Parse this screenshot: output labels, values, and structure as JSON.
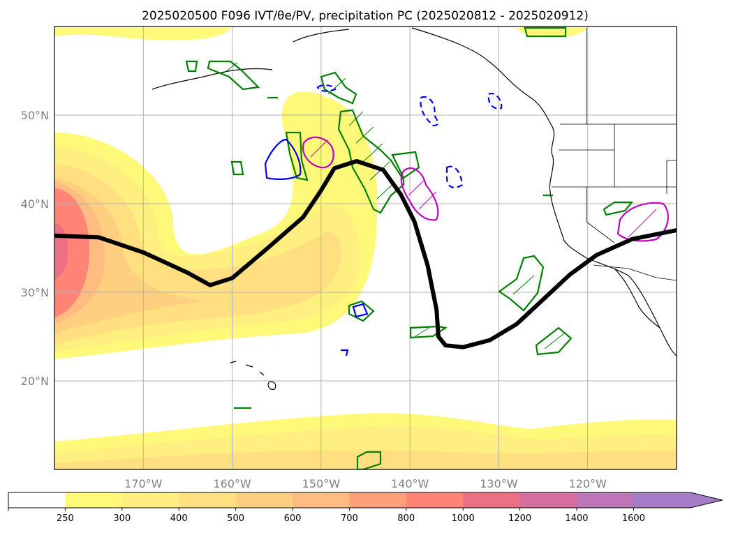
{
  "chart_data": {
    "type": "map",
    "title": "2025020500 F096 IVT/θe/PV, precipitation PC (2025020812 - 2025020912)",
    "projection": "PlateCarree",
    "extent": {
      "lon": [
        -180,
        -110
      ],
      "lat": [
        10,
        60
      ]
    },
    "grid": true,
    "x_ticks": [
      {
        "value": -170,
        "label": "170°W"
      },
      {
        "value": -160,
        "label": "160°W"
      },
      {
        "value": -150,
        "label": "150°W"
      },
      {
        "value": -140,
        "label": "140°W"
      },
      {
        "value": -130,
        "label": "130°W"
      },
      {
        "value": -120,
        "label": "120°W"
      }
    ],
    "y_ticks": [
      {
        "value": 20,
        "label": "20°N"
      },
      {
        "value": 30,
        "label": "30°N"
      },
      {
        "value": 40,
        "label": "40°N"
      },
      {
        "value": 50,
        "label": "50°N"
      }
    ],
    "colorbar": {
      "extend": "max",
      "levels": [
        "250",
        "300",
        "400",
        "500",
        "600",
        "700",
        "800",
        "1000",
        "1200",
        "1400",
        "1600"
      ],
      "colors": [
        "#ffffff",
        "#fff97a",
        "#ffee80",
        "#ffdf80",
        "#ffcf80",
        "#ffbb80",
        "#ffa07a",
        "#ff8478",
        "#ec7084",
        "#d66e9e",
        "#bd76b8",
        "#a57cc7"
      ]
    },
    "ivt_colors": {
      "l250": "#fff97a",
      "l300": "#ffee80",
      "l400": "#ffdf80",
      "l500": "#ffcf80",
      "l600": "#ffbb80",
      "l800": "#ff8478",
      "l1000": "#ec7084"
    },
    "contour_colors": {
      "theta_e": "#000000",
      "pv": "#008000",
      "precip_pos": "#c000c0",
      "precip_neg": "#0000ff"
    },
    "theta_e_contour": [
      [
        -180,
        36.4
      ],
      [
        -175,
        36.2
      ],
      [
        -170,
        34.5
      ],
      [
        -165,
        32.2
      ],
      [
        -162.5,
        30.8
      ],
      [
        -160,
        31.6
      ],
      [
        -156,
        35
      ],
      [
        -152,
        38.5
      ],
      [
        -150,
        41.5
      ],
      [
        -148.5,
        44
      ],
      [
        -146,
        44.8
      ],
      [
        -143,
        43.8
      ],
      [
        -141,
        41
      ],
      [
        -139.5,
        38
      ],
      [
        -138,
        33
      ],
      [
        -137,
        28
      ],
      [
        -136.8,
        25
      ],
      [
        -136,
        24
      ],
      [
        -134,
        23.8
      ],
      [
        -131,
        24.6
      ],
      [
        -128,
        26.4
      ],
      [
        -125,
        29.2
      ],
      [
        -122,
        32
      ],
      [
        -119,
        34.2
      ],
      [
        -115,
        36
      ],
      [
        -110,
        37
      ]
    ]
  }
}
